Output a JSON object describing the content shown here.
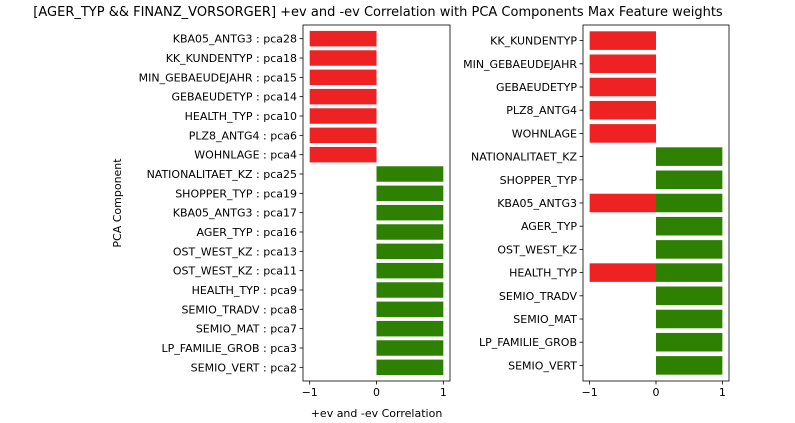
{
  "chart_data": {
    "type": "bar",
    "title": "[AGER_TYP && FINANZ_VORSORGER] +ev and -ev Correlation with PCA Components Max Feature weights",
    "colors": {
      "negative": "#ee2222",
      "positive": "#2d8000"
    },
    "panels": [
      {
        "orientation": "horizontal",
        "xlabel": "+ev and -ev Correlation",
        "ylabel": "PCA Component",
        "xlim": [
          -1.1,
          1.1
        ],
        "xticks": [
          "−1",
          "0",
          "1"
        ],
        "xtick_values": [
          -1,
          0,
          1
        ],
        "categories": [
          "KBA05_ANTG3 : pca28",
          "KK_KUNDENTYP : pca18",
          "MIN_GEBAEUDEJAHR : pca15",
          "GEBAEUDETYP : pca14",
          "HEALTH_TYP : pca10",
          "PLZ8_ANTG4 : pca6",
          "WOHNLAGE : pca4",
          "NATIONALITAET_KZ : pca25",
          "SHOPPER_TYP : pca19",
          "KBA05_ANTG3 : pca17",
          "AGER_TYP : pca16",
          "OST_WEST_KZ : pca13",
          "OST_WEST_KZ : pca11",
          "HEALTH_TYP : pca9",
          "SEMIO_TRADV : pca8",
          "SEMIO_MAT : pca7",
          "LP_FAMILIE_GROB : pca3",
          "SEMIO_VERT : pca2"
        ],
        "series": [
          {
            "values": [
              -1,
              -1,
              -1,
              -1,
              -1,
              -1,
              -1,
              0,
              0,
              0,
              0,
              0,
              0,
              0,
              0,
              0,
              0,
              0
            ]
          },
          {
            "values": [
              0,
              0,
              0,
              0,
              0,
              0,
              0,
              1,
              1,
              1,
              1,
              1,
              1,
              1,
              1,
              1,
              1,
              1
            ]
          }
        ]
      },
      {
        "orientation": "horizontal",
        "xlabel": "",
        "ylabel": "",
        "xlim": [
          -1.1,
          1.1
        ],
        "xticks": [
          "−1",
          "0",
          "1"
        ],
        "xtick_values": [
          -1,
          0,
          1
        ],
        "categories": [
          "KK_KUNDENTYP",
          "MIN_GEBAEUDEJAHR",
          "GEBAEUDETYP",
          "PLZ8_ANTG4",
          "WOHNLAGE",
          "NATIONALITAET_KZ",
          "SHOPPER_TYP",
          "KBA05_ANTG3",
          "AGER_TYP",
          "OST_WEST_KZ",
          "HEALTH_TYP",
          "SEMIO_TRADV",
          "SEMIO_MAT",
          "LP_FAMILIE_GROB",
          "SEMIO_VERT"
        ],
        "series": [
          {
            "values": [
              -1,
              -1,
              -1,
              -1,
              -1,
              0,
              0,
              -1,
              0,
              0,
              -1,
              0,
              0,
              0,
              0
            ]
          },
          {
            "values": [
              0,
              0,
              0,
              0,
              0,
              1,
              1,
              1,
              1,
              1,
              1,
              1,
              1,
              1,
              1
            ]
          }
        ]
      }
    ]
  }
}
